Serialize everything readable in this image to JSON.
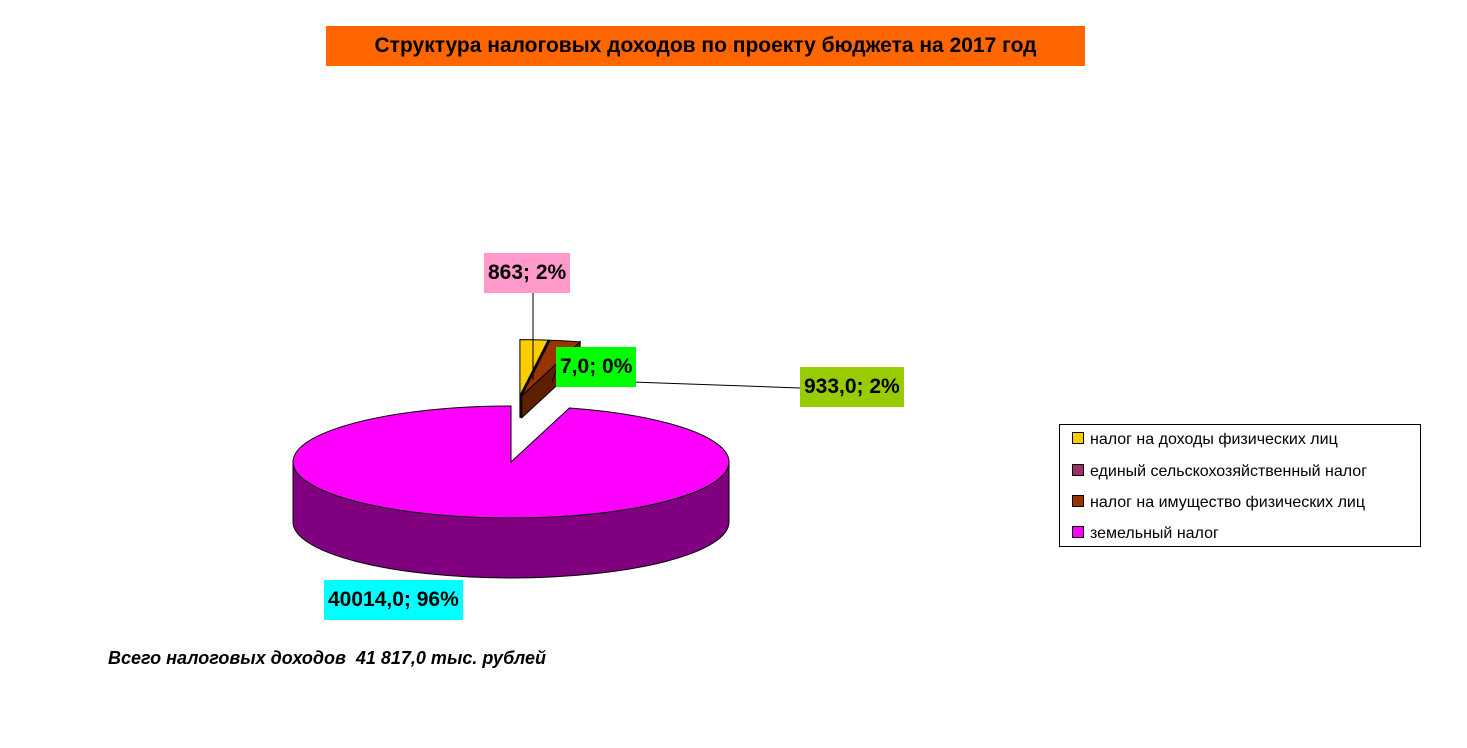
{
  "chart_data": {
    "type": "pie",
    "title": "Структура налоговых доходов по проекту бюджета на 2017 год",
    "title_bg": "#FF6600",
    "legend_position": "right",
    "slices": [
      {
        "name": "налог на доходы физических лиц",
        "value": 863,
        "label": "863; 2%",
        "color": "#FFCC00",
        "side_color": "#B38F00",
        "label_bg": "#FF99CC"
      },
      {
        "name": "единый сельскохозяйственный налог",
        "value": 7.0,
        "label": "7,0; 0%",
        "color": "#993366",
        "side_color": "#6B2447",
        "label_bg": "#00FF00"
      },
      {
        "name": "налог на имущество физических лиц",
        "value": 933.0,
        "label": "933,0; 2%",
        "color": "#993300",
        "side_color": "#5E1F00",
        "label_bg": "#99CC00"
      },
      {
        "name": "земельный налог",
        "value": 40014.0,
        "label": "40014,0; 96%",
        "color": "#FF00FF",
        "side_color": "#800080",
        "label_bg": "#00FFFF"
      }
    ]
  },
  "footnote": "Всего налоговых доходов  41 817,0 тыс. рублей"
}
